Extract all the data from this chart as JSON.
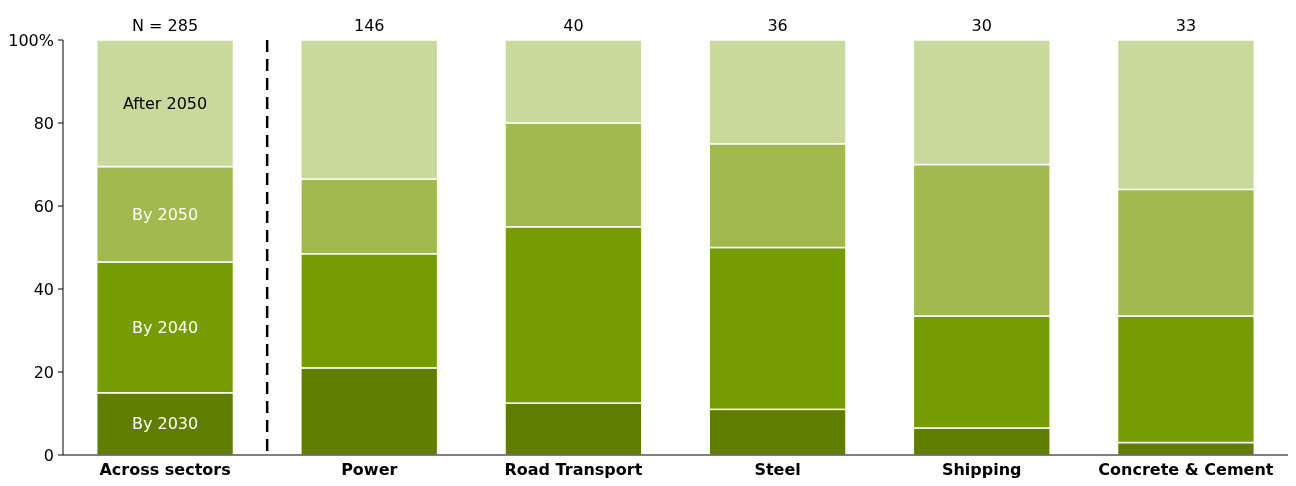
{
  "chart_data": {
    "type": "bar",
    "stacked": true,
    "categories": [
      "Across sectors",
      "Power",
      "Road Transport",
      "Steel",
      "Shipping",
      "Concrete & Cement"
    ],
    "series": [
      {
        "name": "By 2030",
        "color": "#5f7d00",
        "values": [
          15,
          21,
          12.5,
          11,
          6.5,
          3
        ]
      },
      {
        "name": "By 2040",
        "color": "#769c03",
        "values": [
          31.5,
          27.5,
          42.5,
          39,
          27,
          30.5
        ]
      },
      {
        "name": "By 2050",
        "color": "#a1b94f",
        "values": [
          23,
          18,
          25,
          25,
          36.5,
          30.5
        ]
      },
      {
        "name": "After 2050",
        "color": "#c9d99b",
        "values": [
          30.5,
          33.5,
          20,
          25,
          30,
          36
        ]
      }
    ],
    "ylim": [
      0,
      100
    ],
    "yticks": [
      0,
      20,
      40,
      60,
      80,
      {
        "value": 100,
        "label": "100%"
      }
    ],
    "annotations": [
      {
        "text": "N = 285",
        "x": "Across sectors",
        "y": 100
      },
      {
        "text": "146",
        "x": "Power",
        "y": 100
      },
      {
        "text": "40",
        "x": "Road Transport",
        "y": 100
      },
      {
        "text": "36",
        "x": "Steel",
        "y": 100
      },
      {
        "text": "30",
        "x": "Shipping",
        "y": 100
      },
      {
        "text": "33",
        "x": "Concrete & Cement",
        "y": 100
      }
    ],
    "grid": false
  }
}
